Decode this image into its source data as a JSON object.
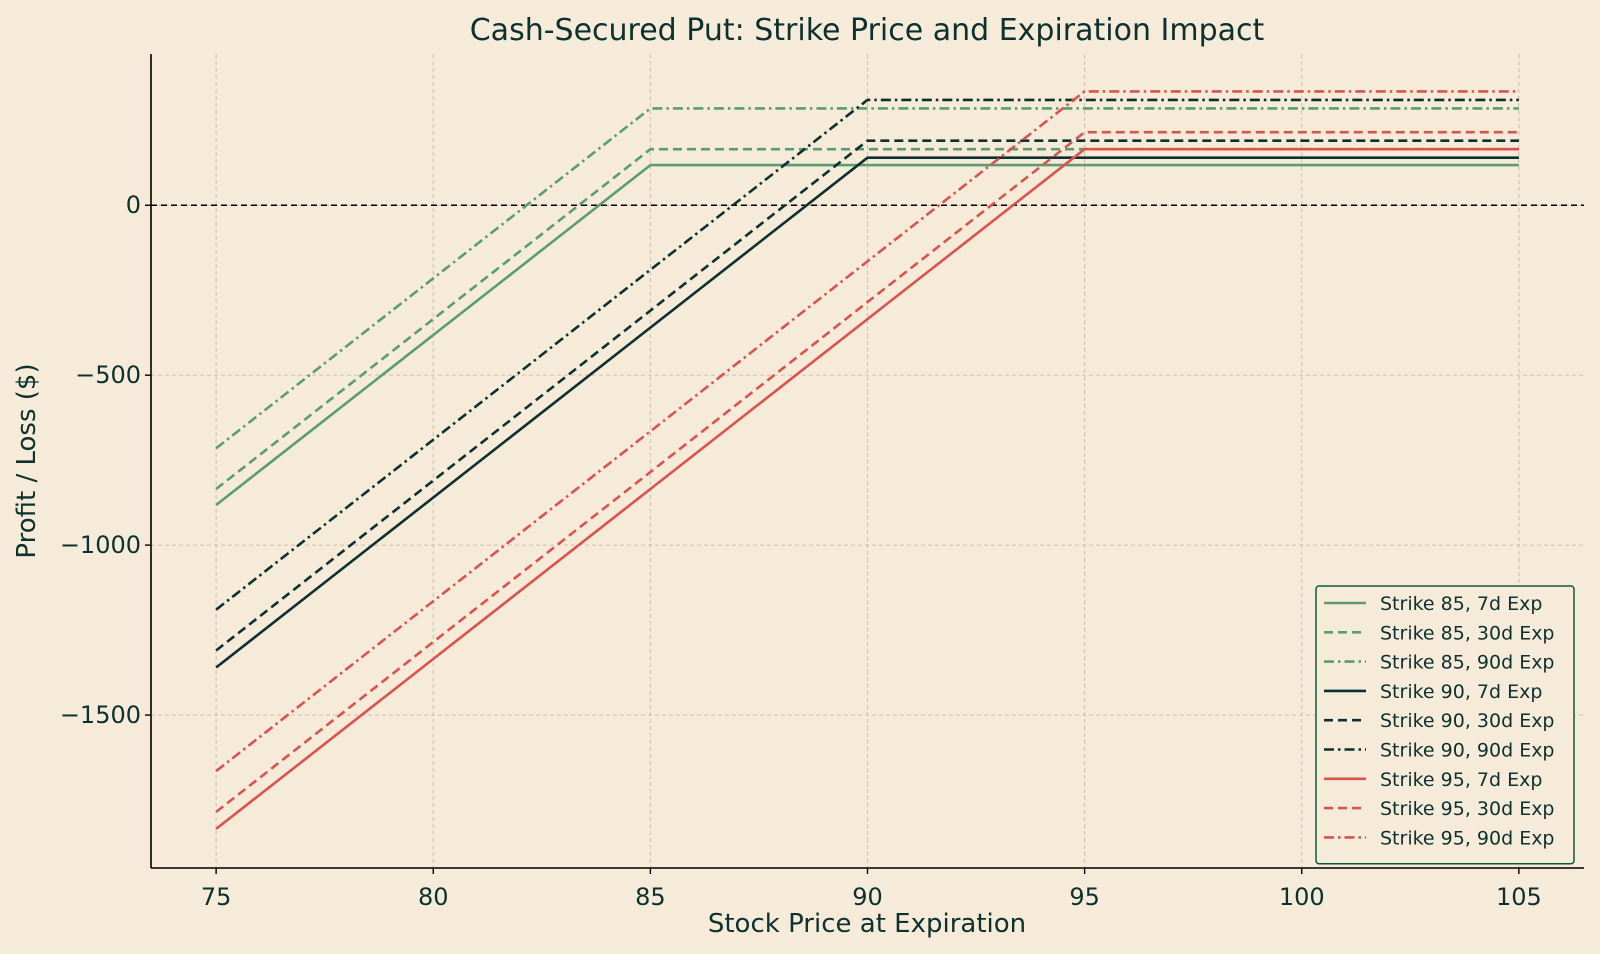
{
  "chart_data": {
    "type": "line",
    "title": "Cash-Secured Put: Strike Price and Expiration Impact",
    "xlabel": "Stock Price at Expiration",
    "ylabel": "Profit / Loss ($)",
    "xlim": [
      73.5,
      106.5
    ],
    "ylim": [
      -1950,
      445
    ],
    "xticks": [
      75,
      80,
      85,
      90,
      95,
      100,
      105
    ],
    "yticks": [
      0,
      -500,
      -1000,
      -1500
    ],
    "ytick_labels": [
      "0",
      "−500",
      "−1000",
      "−1500"
    ],
    "grid": true,
    "zero_line": true,
    "legend_position": "lower-right",
    "x": [
      75,
      85,
      90,
      95,
      105
    ],
    "series": [
      {
        "name": "Strike 85, 7d Exp",
        "style": "solid",
        "color": "#5a9e70",
        "values": [
          -882,
          118,
          118,
          118,
          118
        ]
      },
      {
        "name": "Strike 85, 30d Exp",
        "style": "dashed",
        "color": "#5a9e70",
        "values": [
          -835,
          165,
          165,
          165,
          165
        ]
      },
      {
        "name": "Strike 85, 90d Exp",
        "style": "dashdot",
        "color": "#5a9e70",
        "values": [
          -715,
          285,
          285,
          285,
          285
        ]
      },
      {
        "name": "Strike 90, 7d Exp",
        "style": "solid",
        "color": "#0d3030",
        "values": [
          -1360,
          -360,
          140,
          140,
          140
        ]
      },
      {
        "name": "Strike 90, 30d Exp",
        "style": "dashed",
        "color": "#0d3030",
        "values": [
          -1310,
          -310,
          190,
          190,
          190
        ]
      },
      {
        "name": "Strike 90, 90d Exp",
        "style": "dashdot",
        "color": "#0d3030",
        "values": [
          -1190,
          -190,
          310,
          310,
          310
        ]
      },
      {
        "name": "Strike 95, 7d Exp",
        "style": "solid",
        "color": "#d9534f",
        "values": [
          -1835,
          -835,
          -335,
          165,
          165
        ]
      },
      {
        "name": "Strike 95, 30d Exp",
        "style": "dashed",
        "color": "#d9534f",
        "values": [
          -1785,
          -785,
          -285,
          215,
          215
        ]
      },
      {
        "name": "Strike 95, 90d Exp",
        "style": "dashdot",
        "color": "#d9534f",
        "values": [
          -1665,
          -665,
          -165,
          335,
          335
        ]
      }
    ],
    "colors": {
      "background": "#f5ebd8",
      "text": "#0d3030",
      "grid": "#cdbfae",
      "legend_border": "#0d5a40"
    }
  }
}
